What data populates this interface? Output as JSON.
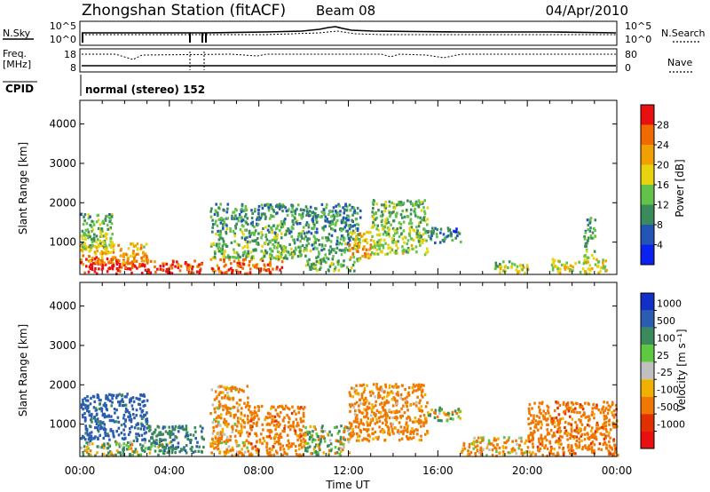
{
  "header": {
    "title": "Zhongshan Station (fitACF)",
    "beam": "Beam 08",
    "date": "04/Apr/2010"
  },
  "top_panels": {
    "nsky_label": "N.Sky",
    "nsearch_label": "N.Search",
    "count_top_left": "10^5",
    "count_bottom_left": "10^0",
    "count_top_right": "10^5",
    "count_bottom_right": "10^0",
    "freq_label_1": "Freq.",
    "freq_label_2": "[MHz]",
    "freq_top": "18",
    "freq_bottom": "8",
    "nave_label": "Nave",
    "nave_top": "80",
    "nave_bottom": "0",
    "cpid_label": "CPID",
    "cpid_value": "normal (stereo) 152"
  },
  "colors": {
    "power": [
      "#0a22f0",
      "#2255b5",
      "#3a8a5c",
      "#62c24a",
      "#e8d40e",
      "#f0a000",
      "#f06a00",
      "#e81010"
    ],
    "velocity": [
      "#1030c8",
      "#2a5cb0",
      "#3a8a5c",
      "#5ec840",
      "#c0c0c0",
      "#f0b000",
      "#f07800",
      "#e03000",
      "#e81010"
    ]
  },
  "power_colorbar": {
    "label": "Power [dB]",
    "ticks": [
      "4",
      "8",
      "12",
      "16",
      "20",
      "24",
      "28"
    ]
  },
  "velocity_colorbar": {
    "label": "Velocity [m s⁻¹]",
    "ticks": [
      "1000",
      "500",
      "100",
      "25",
      "-25",
      "-100",
      "-500",
      "-1000"
    ]
  },
  "x_axis": {
    "label": "Time UT",
    "ticks": [
      "00:00",
      "04:00",
      "08:00",
      "12:00",
      "16:00",
      "20:00",
      "00:00"
    ]
  },
  "chart_data": [
    {
      "type": "heatmap",
      "title": "Power",
      "xlabel": "Time UT",
      "ylabel": "Slant Range [km]",
      "xlim": [
        0,
        24
      ],
      "ylim": [
        180,
        4600
      ],
      "yticks": [
        "1000",
        "2000",
        "3000",
        "4000"
      ],
      "colorbar": {
        "label": "Power [dB]",
        "range": [
          0,
          32
        ]
      },
      "regions": [
        {
          "t": [
            0.0,
            2.0
          ],
          "r": [
            230,
            650
          ],
          "dB": 28
        },
        {
          "t": [
            0.0,
            3.0
          ],
          "r": [
            450,
            1000
          ],
          "dB": 20
        },
        {
          "t": [
            0.0,
            1.5
          ],
          "r": [
            800,
            1750
          ],
          "dB": 12
        },
        {
          "t": [
            2.0,
            5.5
          ],
          "r": [
            230,
            560
          ],
          "dB": 26
        },
        {
          "t": [
            5.8,
            9.0
          ],
          "r": [
            230,
            600
          ],
          "dB": 24
        },
        {
          "t": [
            5.8,
            10.0
          ],
          "r": [
            600,
            2000
          ],
          "dB": 10
        },
        {
          "t": [
            10.0,
            12.5
          ],
          "r": [
            300,
            2000
          ],
          "dB": 9
        },
        {
          "t": [
            12.0,
            13.0
          ],
          "r": [
            600,
            1300
          ],
          "dB": 20
        },
        {
          "t": [
            13.0,
            15.5
          ],
          "r": [
            700,
            2100
          ],
          "dB": 12
        },
        {
          "t": [
            15.5,
            17.0
          ],
          "r": [
            1000,
            1400
          ],
          "dB": 7
        },
        {
          "t": [
            18.5,
            20.0
          ],
          "r": [
            230,
            550
          ],
          "dB": 14
        },
        {
          "t": [
            21.0,
            23.5
          ],
          "r": [
            230,
            600
          ],
          "dB": 16
        },
        {
          "t": [
            22.5,
            23.0
          ],
          "r": [
            600,
            1650
          ],
          "dB": 10
        }
      ]
    },
    {
      "type": "heatmap",
      "title": "Velocity",
      "xlabel": "Time UT",
      "ylabel": "Slant Range [km]",
      "xlim": [
        0,
        24
      ],
      "ylim": [
        180,
        4600
      ],
      "yticks": [
        "1000",
        "2000",
        "3000",
        "4000"
      ],
      "colorbar": {
        "label": "Velocity [m s⁻¹]",
        "range": [
          -1000,
          1000
        ]
      },
      "regions": [
        {
          "t": [
            0.0,
            4.0
          ],
          "r": [
            230,
            600
          ],
          "v": 100
        },
        {
          "t": [
            0.0,
            3.0
          ],
          "r": [
            600,
            1800
          ],
          "v": 700
        },
        {
          "t": [
            3.0,
            5.5
          ],
          "r": [
            300,
            1000
          ],
          "v": 400
        },
        {
          "t": [
            5.8,
            7.5
          ],
          "r": [
            230,
            2000
          ],
          "v": -200
        },
        {
          "t": [
            7.5,
            10.0
          ],
          "r": [
            230,
            1500
          ],
          "v": -300
        },
        {
          "t": [
            10.0,
            12.0
          ],
          "r": [
            230,
            1000
          ],
          "v": 50
        },
        {
          "t": [
            12.0,
            15.5
          ],
          "r": [
            600,
            2050
          ],
          "v": -250
        },
        {
          "t": [
            15.5,
            17.0
          ],
          "r": [
            1100,
            1450
          ],
          "v": 0
        },
        {
          "t": [
            17.0,
            20.0
          ],
          "r": [
            230,
            700
          ],
          "v": -150
        },
        {
          "t": [
            20.0,
            24.0
          ],
          "r": [
            230,
            1600
          ],
          "v": -300
        }
      ]
    }
  ]
}
